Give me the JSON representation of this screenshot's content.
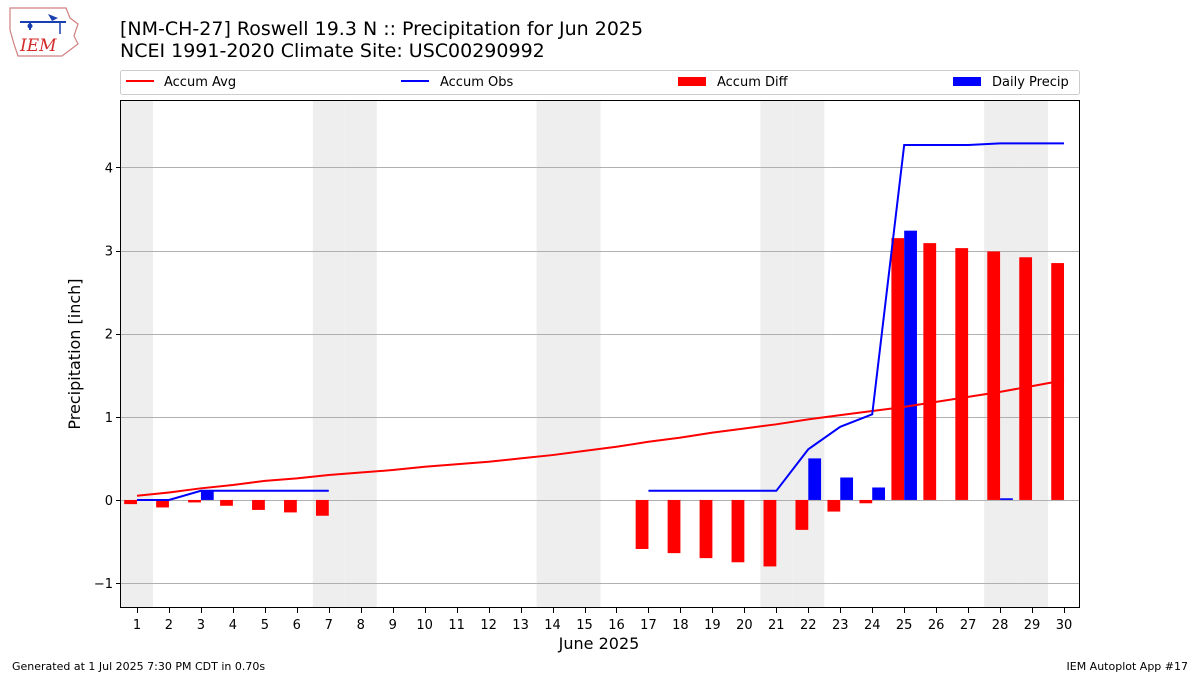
{
  "chart_data": {
    "type": "bar",
    "title": "[NM-CH-27] Roswell 19.3 N :: Precipitation for Jun 2025",
    "subtitle": "NCEI 1991-2020 Climate Site: USC00290992",
    "xlabel": "June 2025",
    "ylabel": "Precipitation [inch]",
    "ylim": [
      -1.3,
      4.8
    ],
    "xlim": [
      0.5,
      30.5
    ],
    "categories": [
      "1",
      "2",
      "3",
      "4",
      "5",
      "6",
      "7",
      "8",
      "9",
      "10",
      "11",
      "12",
      "13",
      "14",
      "15",
      "16",
      "17",
      "18",
      "19",
      "20",
      "21",
      "22",
      "23",
      "24",
      "25",
      "26",
      "27",
      "28",
      "29",
      "30"
    ],
    "yticks": [
      -1,
      0,
      1,
      2,
      3,
      4
    ],
    "ytick_labels": [
      "−1",
      "0",
      "1",
      "2",
      "3",
      "4"
    ],
    "grid": "horizontal",
    "legend_position": "top",
    "weekend_shading_days": [
      1,
      7,
      8,
      14,
      15,
      21,
      22,
      28,
      29
    ],
    "series": [
      {
        "name": "Accum Avg",
        "kind": "line",
        "color": "#ff0000",
        "x": [
          1,
          2,
          3,
          4,
          5,
          6,
          7,
          8,
          9,
          10,
          11,
          12,
          13,
          14,
          15,
          16,
          17,
          18,
          19,
          20,
          21,
          22,
          23,
          24,
          25,
          26,
          27,
          28,
          29,
          30
        ],
        "values": [
          0.05,
          0.09,
          0.14,
          0.18,
          0.23,
          0.26,
          0.3,
          0.33,
          0.36,
          0.4,
          0.43,
          0.46,
          0.5,
          0.54,
          0.59,
          0.64,
          0.7,
          0.75,
          0.81,
          0.86,
          0.91,
          0.97,
          1.02,
          1.07,
          1.12,
          1.18,
          1.24,
          1.3,
          1.37,
          1.44
        ]
      },
      {
        "name": "Accum Obs",
        "kind": "line",
        "color": "#0000ff",
        "segments": [
          {
            "x": [
              1,
              2,
              3,
              4,
              5,
              6,
              7
            ],
            "values": [
              0.0,
              0.0,
              0.11,
              0.11,
              0.11,
              0.11,
              0.11
            ]
          },
          {
            "x": [
              17,
              18,
              19,
              20,
              21,
              22,
              23,
              24,
              25,
              26,
              27,
              28,
              29,
              30
            ],
            "values": [
              0.11,
              0.11,
              0.11,
              0.11,
              0.11,
              0.61,
              0.88,
              1.03,
              4.27,
              4.27,
              4.27,
              4.29,
              4.29,
              4.29
            ]
          }
        ]
      },
      {
        "name": "Accum Diff",
        "kind": "bar",
        "color": "#ff0000",
        "x": [
          1,
          2,
          3,
          4,
          5,
          6,
          7,
          17,
          18,
          19,
          20,
          21,
          22,
          23,
          24,
          25,
          26,
          27,
          28,
          29,
          30
        ],
        "values": [
          -0.05,
          -0.09,
          -0.03,
          -0.07,
          -0.12,
          -0.15,
          -0.19,
          -0.59,
          -0.64,
          -0.7,
          -0.75,
          -0.8,
          -0.36,
          -0.14,
          -0.04,
          3.15,
          3.09,
          3.03,
          2.99,
          2.92,
          2.85
        ]
      },
      {
        "name": "Daily Precip",
        "kind": "bar",
        "color": "#0000ff",
        "x": [
          3,
          22,
          23,
          24,
          25,
          28
        ],
        "values": [
          0.11,
          0.5,
          0.27,
          0.15,
          3.24,
          0.02
        ]
      }
    ]
  },
  "footer": {
    "generated": "Generated at 1 Jul 2025 7:30 PM CDT in 0.70s",
    "app": "IEM Autoplot App #17"
  },
  "logo": {
    "text": "IEM"
  }
}
